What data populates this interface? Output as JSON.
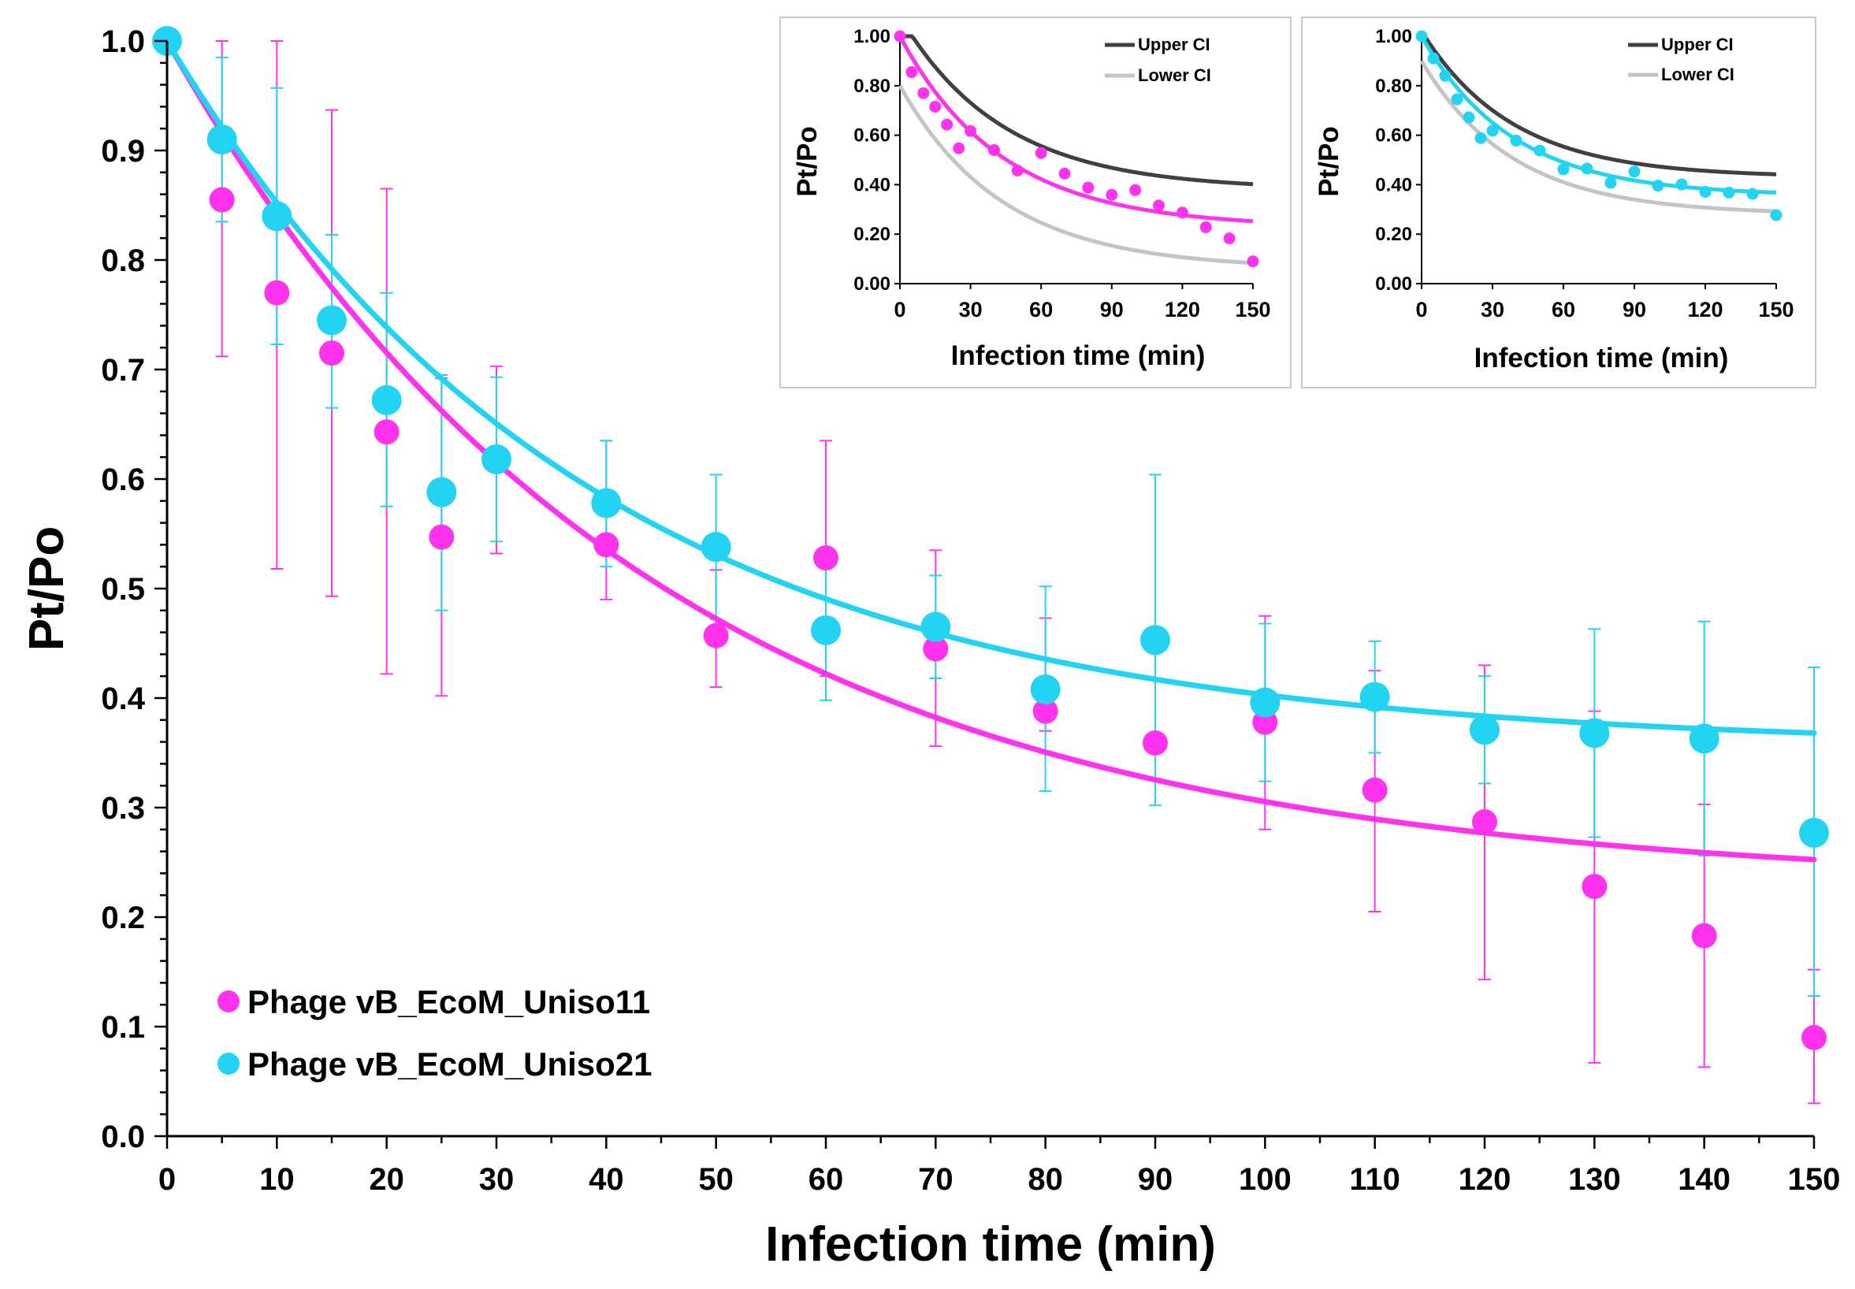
{
  "colors": {
    "magenta": "#ff33ee",
    "cyan": "#22d4f2",
    "upper_ci": "#404040",
    "lower_ci": "#c4c4c4",
    "inset_border": "#c8c8c8"
  },
  "chart_data": [
    {
      "id": "main",
      "type": "scatter",
      "title": "",
      "xlabel": "Infection time (min)",
      "ylabel": "Pt/Po",
      "xlim": [
        0,
        150
      ],
      "ylim": [
        0,
        1.0
      ],
      "xticks": [
        0,
        10,
        20,
        30,
        40,
        50,
        60,
        70,
        80,
        90,
        100,
        110,
        120,
        130,
        140,
        150
      ],
      "yticks": [
        "0.0",
        "0.1",
        "0.2",
        "0.3",
        "0.4",
        "0.5",
        "0.6",
        "0.7",
        "0.8",
        "0.9",
        "1.0"
      ],
      "legend_position": "bottom-left",
      "series": [
        {
          "name": "Phage vB_EcoM_Uniso11",
          "color": "#ff33ee",
          "x": [
            0,
            5,
            10,
            15,
            20,
            25,
            30,
            40,
            50,
            60,
            70,
            80,
            90,
            100,
            110,
            120,
            130,
            140,
            150
          ],
          "y": [
            1.0,
            0.855,
            0.77,
            0.715,
            0.643,
            0.547,
            0.617,
            0.54,
            0.457,
            0.528,
            0.445,
            0.388,
            0.359,
            0.378,
            0.316,
            0.287,
            0.228,
            0.183,
            0.09
          ],
          "err_hi": [
            1.0,
            1.0,
            1.0,
            0.937,
            0.865,
            0.692,
            0.703,
            0.635,
            0.517,
            0.635,
            0.535,
            0.473,
            0.448,
            0.475,
            0.425,
            0.43,
            0.388,
            0.303,
            0.152
          ],
          "err_lo": [
            1.0,
            0.712,
            0.518,
            0.493,
            0.422,
            0.402,
            0.532,
            0.49,
            0.41,
            0.42,
            0.356,
            0.37,
            0.325,
            0.28,
            0.205,
            0.143,
            0.067,
            0.063,
            0.03
          ],
          "fit": {
            "model": "y = c + (1 - c) * exp(-k x)",
            "c": 0.228,
            "k": 0.023
          }
        },
        {
          "name": "Phage vB_EcoM_Uniso21",
          "color": "#22d4f2",
          "x": [
            0,
            5,
            10,
            15,
            20,
            25,
            30,
            40,
            50,
            60,
            70,
            80,
            90,
            100,
            110,
            120,
            130,
            140,
            150
          ],
          "y": [
            1.0,
            0.91,
            0.84,
            0.745,
            0.672,
            0.588,
            0.618,
            0.578,
            0.538,
            0.462,
            0.465,
            0.408,
            0.453,
            0.396,
            0.401,
            0.371,
            0.368,
            0.363,
            0.277
          ],
          "err_hi": [
            1.0,
            0.985,
            0.957,
            0.823,
            0.77,
            0.695,
            0.693,
            0.635,
            0.604,
            0.525,
            0.512,
            0.502,
            0.604,
            0.468,
            0.452,
            0.42,
            0.463,
            0.47,
            0.428
          ],
          "err_lo": [
            1.0,
            0.835,
            0.723,
            0.665,
            0.575,
            0.48,
            0.543,
            0.52,
            0.472,
            0.398,
            0.418,
            0.315,
            0.302,
            0.324,
            0.35,
            0.322,
            0.273,
            0.256,
            0.128
          ],
          "fit": {
            "model": "y = c + (1 - c) * exp(-k x)",
            "c": 0.355,
            "k": 0.026
          }
        }
      ]
    },
    {
      "id": "inset1",
      "type": "scatter",
      "xlabel": "Infection time (min)",
      "ylabel": "Pt/Po",
      "xlim": [
        0,
        150
      ],
      "ylim": [
        0,
        1.0
      ],
      "xticks": [
        0,
        30,
        60,
        90,
        120,
        150
      ],
      "yticks": [
        "0.00",
        "0.20",
        "0.40",
        "0.60",
        "0.80",
        "1.00"
      ],
      "legend": [
        "Upper CI",
        "Lower CI"
      ],
      "legend_position": "top-right",
      "points": {
        "color": "#ff33ee",
        "x": [
          0,
          5,
          10,
          15,
          20,
          25,
          30,
          40,
          50,
          60,
          70,
          80,
          90,
          100,
          110,
          120,
          130,
          140,
          150
        ],
        "y": [
          1.0,
          0.855,
          0.77,
          0.715,
          0.643,
          0.547,
          0.617,
          0.54,
          0.457,
          0.528,
          0.445,
          0.388,
          0.359,
          0.378,
          0.316,
          0.287,
          0.228,
          0.183,
          0.09
        ]
      },
      "fit": {
        "c": 0.228,
        "k": 0.023
      },
      "upper_ci": {
        "c": 0.38,
        "k": 0.023,
        "start": 1.08
      },
      "lower_ci": {
        "c": 0.06,
        "k": 0.023,
        "start": 0.8
      }
    },
    {
      "id": "inset2",
      "type": "scatter",
      "xlabel": "Infection time (min)",
      "ylabel": "Pt/Po",
      "xlim": [
        0,
        150
      ],
      "ylim": [
        0,
        1.0
      ],
      "xticks": [
        0,
        30,
        60,
        90,
        120,
        150
      ],
      "yticks": [
        "0.00",
        "0.20",
        "0.40",
        "0.60",
        "0.80",
        "1.00"
      ],
      "legend": [
        "Upper CI",
        "Lower CI"
      ],
      "legend_position": "top-right",
      "points": {
        "color": "#22d4f2",
        "x": [
          0,
          5,
          10,
          15,
          20,
          25,
          30,
          40,
          50,
          60,
          70,
          80,
          90,
          100,
          110,
          120,
          130,
          140,
          150
        ],
        "y": [
          1.0,
          0.91,
          0.84,
          0.745,
          0.672,
          0.588,
          0.618,
          0.578,
          0.538,
          0.462,
          0.465,
          0.408,
          0.453,
          0.396,
          0.401,
          0.371,
          0.368,
          0.363,
          0.277
        ]
      },
      "fit": {
        "c": 0.355,
        "k": 0.026
      },
      "upper_ci": {
        "c": 0.43,
        "k": 0.026,
        "start": 1.02
      },
      "lower_ci": {
        "c": 0.28,
        "k": 0.026,
        "start": 0.9
      }
    }
  ]
}
